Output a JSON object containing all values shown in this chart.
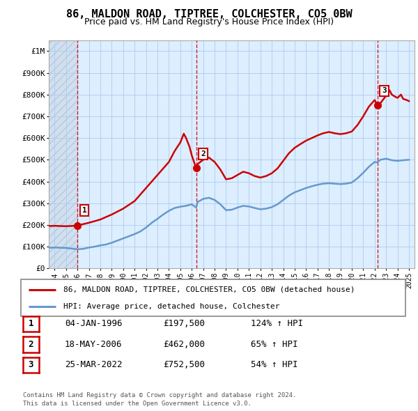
{
  "title": "86, MALDON ROAD, TIPTREE, COLCHESTER, CO5 0BW",
  "subtitle": "Price paid vs. HM Land Registry's House Price Index (HPI)",
  "hpi_label": "HPI: Average price, detached house, Colchester",
  "property_label": "86, MALDON ROAD, TIPTREE, COLCHESTER, CO5 0BW (detached house)",
  "sale_dates": [
    "04-JAN-1996",
    "18-MAY-2006",
    "25-MAR-2022"
  ],
  "sale_prices": [
    197500,
    462000,
    752500
  ],
  "sale_hpi_pct": [
    "124% ↑ HPI",
    "65% ↑ HPI",
    "54% ↑ HPI"
  ],
  "sale_years": [
    1996.01,
    2006.38,
    2022.23
  ],
  "ylabel_ticks": [
    0,
    100000,
    200000,
    300000,
    400000,
    500000,
    600000,
    700000,
    800000,
    900000,
    1000000
  ],
  "ylabel_labels": [
    "£0",
    "£100K",
    "£200K",
    "£300K",
    "£400K",
    "£500K",
    "£600K",
    "£700K",
    "£800K",
    "£900K",
    "£1M"
  ],
  "xlim": [
    1993.5,
    2025.5
  ],
  "ylim": [
    0,
    1050000
  ],
  "hpi_color": "#6699cc",
  "sale_color": "#cc0000",
  "grid_color": "#aaccee",
  "bg_color": "#ddeeff",
  "footer": "Contains HM Land Registry data © Crown copyright and database right 2024.\nThis data is licensed under the Open Government Licence v3.0.",
  "hpi_data": [
    [
      1993.5,
      95000
    ],
    [
      1994.0,
      96000
    ],
    [
      1994.5,
      95000
    ],
    [
      1995.0,
      94000
    ],
    [
      1995.5,
      91000
    ],
    [
      1996.01,
      88000
    ],
    [
      1996.5,
      90000
    ],
    [
      1997.0,
      96000
    ],
    [
      1997.5,
      100000
    ],
    [
      1998.0,
      106000
    ],
    [
      1998.5,
      110000
    ],
    [
      1999.0,
      118000
    ],
    [
      1999.5,
      128000
    ],
    [
      2000.0,
      138000
    ],
    [
      2000.5,
      148000
    ],
    [
      2001.0,
      158000
    ],
    [
      2001.5,
      170000
    ],
    [
      2002.0,
      188000
    ],
    [
      2002.5,
      210000
    ],
    [
      2003.0,
      228000
    ],
    [
      2003.5,
      248000
    ],
    [
      2004.0,
      265000
    ],
    [
      2004.5,
      278000
    ],
    [
      2005.0,
      284000
    ],
    [
      2005.5,
      288000
    ],
    [
      2006.0,
      295000
    ],
    [
      2006.38,
      280000
    ],
    [
      2006.5,
      305000
    ],
    [
      2007.0,
      320000
    ],
    [
      2007.5,
      325000
    ],
    [
      2008.0,
      315000
    ],
    [
      2008.5,
      295000
    ],
    [
      2009.0,
      268000
    ],
    [
      2009.5,
      270000
    ],
    [
      2010.0,
      280000
    ],
    [
      2010.5,
      288000
    ],
    [
      2011.0,
      285000
    ],
    [
      2011.5,
      278000
    ],
    [
      2012.0,
      272000
    ],
    [
      2012.5,
      275000
    ],
    [
      2013.0,
      282000
    ],
    [
      2013.5,
      295000
    ],
    [
      2014.0,
      315000
    ],
    [
      2014.5,
      335000
    ],
    [
      2015.0,
      350000
    ],
    [
      2015.5,
      360000
    ],
    [
      2016.0,
      370000
    ],
    [
      2016.5,
      378000
    ],
    [
      2017.0,
      385000
    ],
    [
      2017.5,
      390000
    ],
    [
      2018.0,
      392000
    ],
    [
      2018.5,
      390000
    ],
    [
      2019.0,
      388000
    ],
    [
      2019.5,
      390000
    ],
    [
      2020.0,
      395000
    ],
    [
      2020.5,
      415000
    ],
    [
      2021.0,
      440000
    ],
    [
      2021.5,
      468000
    ],
    [
      2022.0,
      490000
    ],
    [
      2022.23,
      488000
    ],
    [
      2022.5,
      500000
    ],
    [
      2023.0,
      505000
    ],
    [
      2023.5,
      498000
    ],
    [
      2024.0,
      495000
    ],
    [
      2024.5,
      498000
    ],
    [
      2025.0,
      500000
    ]
  ],
  "sale_line_data": [
    [
      1993.5,
      195000
    ],
    [
      1994.0,
      196000
    ],
    [
      1994.5,
      195000
    ],
    [
      1995.0,
      194000
    ],
    [
      1995.5,
      195500
    ],
    [
      1996.01,
      197500
    ],
    [
      1997.0,
      210000
    ],
    [
      1998.0,
      225000
    ],
    [
      1999.0,
      248000
    ],
    [
      2000.0,
      275000
    ],
    [
      2001.0,
      310000
    ],
    [
      2002.0,
      370000
    ],
    [
      2003.0,
      430000
    ],
    [
      2004.0,
      490000
    ],
    [
      2004.5,
      540000
    ],
    [
      2005.0,
      580000
    ],
    [
      2005.3,
      620000
    ],
    [
      2005.5,
      600000
    ],
    [
      2005.8,
      560000
    ],
    [
      2006.0,
      520000
    ],
    [
      2006.38,
      462000
    ],
    [
      2006.5,
      480000
    ],
    [
      2007.0,
      500000
    ],
    [
      2007.5,
      510000
    ],
    [
      2008.0,
      490000
    ],
    [
      2008.5,
      455000
    ],
    [
      2009.0,
      410000
    ],
    [
      2009.5,
      415000
    ],
    [
      2010.0,
      430000
    ],
    [
      2010.5,
      445000
    ],
    [
      2011.0,
      438000
    ],
    [
      2011.5,
      425000
    ],
    [
      2012.0,
      418000
    ],
    [
      2012.5,
      425000
    ],
    [
      2013.0,
      438000
    ],
    [
      2013.5,
      460000
    ],
    [
      2014.0,
      495000
    ],
    [
      2014.5,
      530000
    ],
    [
      2015.0,
      555000
    ],
    [
      2015.5,
      572000
    ],
    [
      2016.0,
      588000
    ],
    [
      2016.5,
      600000
    ],
    [
      2017.0,
      612000
    ],
    [
      2017.5,
      622000
    ],
    [
      2018.0,
      628000
    ],
    [
      2018.5,
      622000
    ],
    [
      2019.0,
      618000
    ],
    [
      2019.5,
      622000
    ],
    [
      2020.0,
      630000
    ],
    [
      2020.5,
      660000
    ],
    [
      2021.0,
      700000
    ],
    [
      2021.5,
      745000
    ],
    [
      2022.0,
      775000
    ],
    [
      2022.23,
      752500
    ],
    [
      2022.5,
      760000
    ],
    [
      2023.0,
      795000
    ],
    [
      2023.3,
      820000
    ],
    [
      2023.5,
      800000
    ],
    [
      2023.8,
      790000
    ],
    [
      2024.0,
      785000
    ],
    [
      2024.3,
      800000
    ],
    [
      2024.5,
      780000
    ],
    [
      2024.8,
      775000
    ],
    [
      2025.0,
      770000
    ]
  ]
}
